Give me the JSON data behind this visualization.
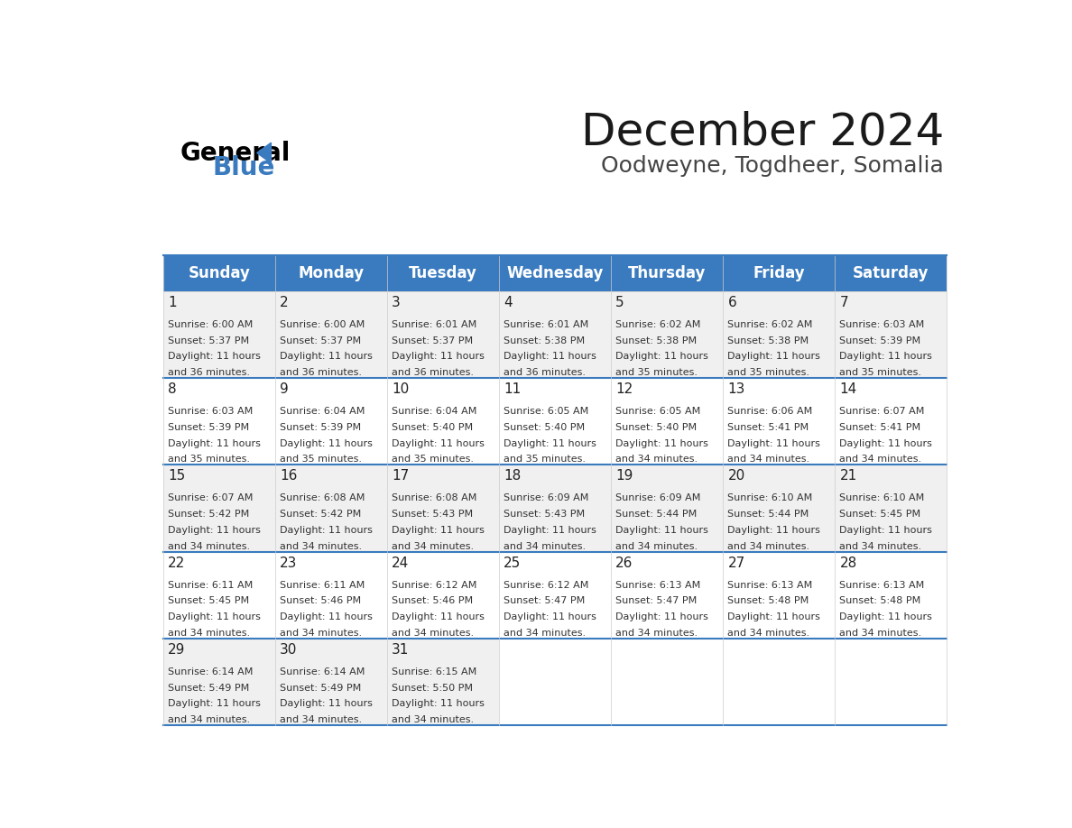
{
  "title": "December 2024",
  "subtitle": "Oodweyne, Togdheer, Somalia",
  "header_bg": "#3a7bbf",
  "header_text_color": "#ffffff",
  "cell_bg_odd": "#f0f0f0",
  "cell_bg_even": "#ffffff",
  "border_color": "#3a7bbf",
  "day_names": [
    "Sunday",
    "Monday",
    "Tuesday",
    "Wednesday",
    "Thursday",
    "Friday",
    "Saturday"
  ],
  "days": [
    {
      "day": 1,
      "col": 0,
      "row": 0,
      "sunrise": "6:00 AM",
      "sunset": "5:37 PM",
      "daylight_h": "11 hours",
      "daylight_m": "and 36 minutes."
    },
    {
      "day": 2,
      "col": 1,
      "row": 0,
      "sunrise": "6:00 AM",
      "sunset": "5:37 PM",
      "daylight_h": "11 hours",
      "daylight_m": "and 36 minutes."
    },
    {
      "day": 3,
      "col": 2,
      "row": 0,
      "sunrise": "6:01 AM",
      "sunset": "5:37 PM",
      "daylight_h": "11 hours",
      "daylight_m": "and 36 minutes."
    },
    {
      "day": 4,
      "col": 3,
      "row": 0,
      "sunrise": "6:01 AM",
      "sunset": "5:38 PM",
      "daylight_h": "11 hours",
      "daylight_m": "and 36 minutes."
    },
    {
      "day": 5,
      "col": 4,
      "row": 0,
      "sunrise": "6:02 AM",
      "sunset": "5:38 PM",
      "daylight_h": "11 hours",
      "daylight_m": "and 35 minutes."
    },
    {
      "day": 6,
      "col": 5,
      "row": 0,
      "sunrise": "6:02 AM",
      "sunset": "5:38 PM",
      "daylight_h": "11 hours",
      "daylight_m": "and 35 minutes."
    },
    {
      "day": 7,
      "col": 6,
      "row": 0,
      "sunrise": "6:03 AM",
      "sunset": "5:39 PM",
      "daylight_h": "11 hours",
      "daylight_m": "and 35 minutes."
    },
    {
      "day": 8,
      "col": 0,
      "row": 1,
      "sunrise": "6:03 AM",
      "sunset": "5:39 PM",
      "daylight_h": "11 hours",
      "daylight_m": "and 35 minutes."
    },
    {
      "day": 9,
      "col": 1,
      "row": 1,
      "sunrise": "6:04 AM",
      "sunset": "5:39 PM",
      "daylight_h": "11 hours",
      "daylight_m": "and 35 minutes."
    },
    {
      "day": 10,
      "col": 2,
      "row": 1,
      "sunrise": "6:04 AM",
      "sunset": "5:40 PM",
      "daylight_h": "11 hours",
      "daylight_m": "and 35 minutes."
    },
    {
      "day": 11,
      "col": 3,
      "row": 1,
      "sunrise": "6:05 AM",
      "sunset": "5:40 PM",
      "daylight_h": "11 hours",
      "daylight_m": "and 35 minutes."
    },
    {
      "day": 12,
      "col": 4,
      "row": 1,
      "sunrise": "6:05 AM",
      "sunset": "5:40 PM",
      "daylight_h": "11 hours",
      "daylight_m": "and 34 minutes."
    },
    {
      "day": 13,
      "col": 5,
      "row": 1,
      "sunrise": "6:06 AM",
      "sunset": "5:41 PM",
      "daylight_h": "11 hours",
      "daylight_m": "and 34 minutes."
    },
    {
      "day": 14,
      "col": 6,
      "row": 1,
      "sunrise": "6:07 AM",
      "sunset": "5:41 PM",
      "daylight_h": "11 hours",
      "daylight_m": "and 34 minutes."
    },
    {
      "day": 15,
      "col": 0,
      "row": 2,
      "sunrise": "6:07 AM",
      "sunset": "5:42 PM",
      "daylight_h": "11 hours",
      "daylight_m": "and 34 minutes."
    },
    {
      "day": 16,
      "col": 1,
      "row": 2,
      "sunrise": "6:08 AM",
      "sunset": "5:42 PM",
      "daylight_h": "11 hours",
      "daylight_m": "and 34 minutes."
    },
    {
      "day": 17,
      "col": 2,
      "row": 2,
      "sunrise": "6:08 AM",
      "sunset": "5:43 PM",
      "daylight_h": "11 hours",
      "daylight_m": "and 34 minutes."
    },
    {
      "day": 18,
      "col": 3,
      "row": 2,
      "sunrise": "6:09 AM",
      "sunset": "5:43 PM",
      "daylight_h": "11 hours",
      "daylight_m": "and 34 minutes."
    },
    {
      "day": 19,
      "col": 4,
      "row": 2,
      "sunrise": "6:09 AM",
      "sunset": "5:44 PM",
      "daylight_h": "11 hours",
      "daylight_m": "and 34 minutes."
    },
    {
      "day": 20,
      "col": 5,
      "row": 2,
      "sunrise": "6:10 AM",
      "sunset": "5:44 PM",
      "daylight_h": "11 hours",
      "daylight_m": "and 34 minutes."
    },
    {
      "day": 21,
      "col": 6,
      "row": 2,
      "sunrise": "6:10 AM",
      "sunset": "5:45 PM",
      "daylight_h": "11 hours",
      "daylight_m": "and 34 minutes."
    },
    {
      "day": 22,
      "col": 0,
      "row": 3,
      "sunrise": "6:11 AM",
      "sunset": "5:45 PM",
      "daylight_h": "11 hours",
      "daylight_m": "and 34 minutes."
    },
    {
      "day": 23,
      "col": 1,
      "row": 3,
      "sunrise": "6:11 AM",
      "sunset": "5:46 PM",
      "daylight_h": "11 hours",
      "daylight_m": "and 34 minutes."
    },
    {
      "day": 24,
      "col": 2,
      "row": 3,
      "sunrise": "6:12 AM",
      "sunset": "5:46 PM",
      "daylight_h": "11 hours",
      "daylight_m": "and 34 minutes."
    },
    {
      "day": 25,
      "col": 3,
      "row": 3,
      "sunrise": "6:12 AM",
      "sunset": "5:47 PM",
      "daylight_h": "11 hours",
      "daylight_m": "and 34 minutes."
    },
    {
      "day": 26,
      "col": 4,
      "row": 3,
      "sunrise": "6:13 AM",
      "sunset": "5:47 PM",
      "daylight_h": "11 hours",
      "daylight_m": "and 34 minutes."
    },
    {
      "day": 27,
      "col": 5,
      "row": 3,
      "sunrise": "6:13 AM",
      "sunset": "5:48 PM",
      "daylight_h": "11 hours",
      "daylight_m": "and 34 minutes."
    },
    {
      "day": 28,
      "col": 6,
      "row": 3,
      "sunrise": "6:13 AM",
      "sunset": "5:48 PM",
      "daylight_h": "11 hours",
      "daylight_m": "and 34 minutes."
    },
    {
      "day": 29,
      "col": 0,
      "row": 4,
      "sunrise": "6:14 AM",
      "sunset": "5:49 PM",
      "daylight_h": "11 hours",
      "daylight_m": "and 34 minutes."
    },
    {
      "day": 30,
      "col": 1,
      "row": 4,
      "sunrise": "6:14 AM",
      "sunset": "5:49 PM",
      "daylight_h": "11 hours",
      "daylight_m": "and 34 minutes."
    },
    {
      "day": 31,
      "col": 2,
      "row": 4,
      "sunrise": "6:15 AM",
      "sunset": "5:50 PM",
      "daylight_h": "11 hours",
      "daylight_m": "and 34 minutes."
    }
  ],
  "logo_text1": "General",
  "logo_text2": "Blue",
  "logo_color1": "#000000",
  "logo_color2": "#3a7bbf",
  "logo_triangle_color": "#3a7bbf",
  "title_fontsize": 36,
  "subtitle_fontsize": 18,
  "header_fontsize": 12,
  "day_num_fontsize": 11,
  "info_fontsize": 8
}
